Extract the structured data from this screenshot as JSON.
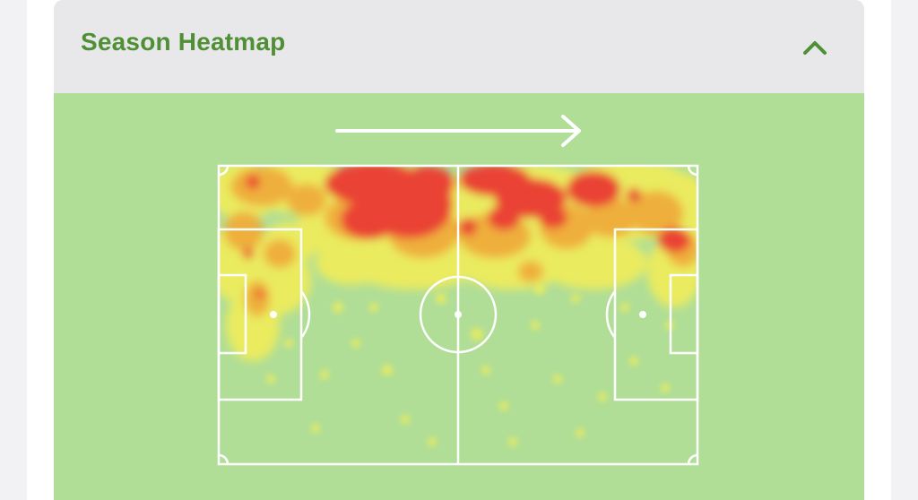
{
  "panel": {
    "title": "Season Heatmap",
    "collapse_icon": "chevron-up-icon",
    "expanded": true
  },
  "heatmap": {
    "direction_icon": "arrow-right-icon",
    "attack_direction": "left-to-right",
    "colors": {
      "background": "#b0de96",
      "low": "#f5ee55",
      "mid": "#f0a93a",
      "high": "#ea4335",
      "lines": "#ffffff"
    }
  }
}
